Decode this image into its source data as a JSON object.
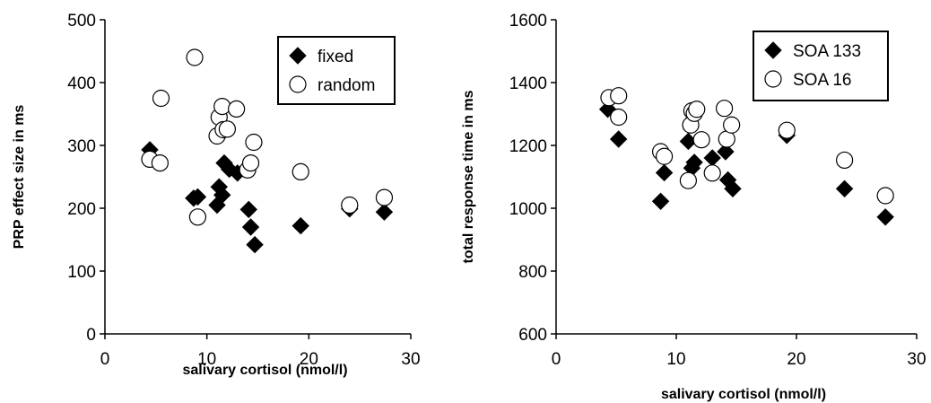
{
  "chart_data": [
    {
      "type": "scatter",
      "title": "",
      "xlabel": "salivary cortisol (nmol/l)",
      "ylabel": "PRP effect size in ms",
      "xlim": [
        0,
        30
      ],
      "ylim": [
        0,
        500
      ],
      "xticks": [
        0,
        10,
        20,
        30
      ],
      "yticks": [
        0,
        100,
        200,
        300,
        400,
        500
      ],
      "grid": false,
      "legend_position": "top-right",
      "series": [
        {
          "name": "fixed",
          "marker": "filled-diamond",
          "color": "#000000",
          "points": [
            [
              4.4,
              293
            ],
            [
              8.7,
              216
            ],
            [
              9.1,
              218
            ],
            [
              11.0,
              205
            ],
            [
              11.2,
              234
            ],
            [
              11.5,
              221
            ],
            [
              11.7,
              272
            ],
            [
              12.2,
              262
            ],
            [
              13.0,
              256
            ],
            [
              14.1,
              198
            ],
            [
              14.3,
              170
            ],
            [
              14.7,
              142
            ],
            [
              19.2,
              172
            ],
            [
              24.0,
              199
            ],
            [
              27.4,
              194
            ]
          ]
        },
        {
          "name": "random",
          "marker": "open-circle",
          "color": "#000000",
          "points": [
            [
              4.4,
              278
            ],
            [
              5.4,
              272
            ],
            [
              5.5,
              375
            ],
            [
              8.8,
              440
            ],
            [
              9.1,
              186
            ],
            [
              11.0,
              315
            ],
            [
              11.2,
              345
            ],
            [
              11.5,
              362
            ],
            [
              11.6,
              325
            ],
            [
              12.0,
              326
            ],
            [
              12.9,
              358
            ],
            [
              14.0,
              261
            ],
            [
              14.3,
              272
            ],
            [
              14.6,
              305
            ],
            [
              19.2,
              258
            ],
            [
              24.0,
              205
            ],
            [
              27.4,
              217
            ]
          ]
        }
      ]
    },
    {
      "type": "scatter",
      "title": "",
      "xlabel": "salivary cortisol (nmol/l)",
      "ylabel": "total response time in ms",
      "xlim": [
        0,
        30
      ],
      "ylim": [
        600,
        1600
      ],
      "xticks": [
        0,
        10,
        20,
        30
      ],
      "yticks": [
        600,
        800,
        1000,
        1200,
        1400,
        1600
      ],
      "grid": false,
      "legend_position": "top-right",
      "series": [
        {
          "name": "SOA 133",
          "marker": "filled-diamond",
          "color": "#000000",
          "points": [
            [
              4.3,
              1315
            ],
            [
              5.2,
              1220
            ],
            [
              8.7,
              1022
            ],
            [
              9.0,
              1113
            ],
            [
              11.0,
              1213
            ],
            [
              11.3,
              1128
            ],
            [
              11.5,
              1146
            ],
            [
              13.0,
              1160
            ],
            [
              14.1,
              1180
            ],
            [
              14.3,
              1090
            ],
            [
              14.7,
              1062
            ],
            [
              19.2,
              1232
            ],
            [
              24.0,
              1062
            ],
            [
              27.4,
              972
            ]
          ]
        },
        {
          "name": "SOA 16",
          "marker": "open-circle",
          "color": "#000000",
          "points": [
            [
              4.4,
              1352
            ],
            [
              5.2,
              1358
            ],
            [
              5.2,
              1290
            ],
            [
              8.7,
              1180
            ],
            [
              9.0,
              1165
            ],
            [
              11.0,
              1088
            ],
            [
              11.2,
              1265
            ],
            [
              11.3,
              1310
            ],
            [
              11.5,
              1302
            ],
            [
              11.7,
              1315
            ],
            [
              12.1,
              1218
            ],
            [
              13.0,
              1112
            ],
            [
              14.0,
              1318
            ],
            [
              14.2,
              1220
            ],
            [
              14.6,
              1265
            ],
            [
              19.2,
              1248
            ],
            [
              24.0,
              1153
            ],
            [
              27.4,
              1040
            ]
          ]
        }
      ]
    }
  ]
}
